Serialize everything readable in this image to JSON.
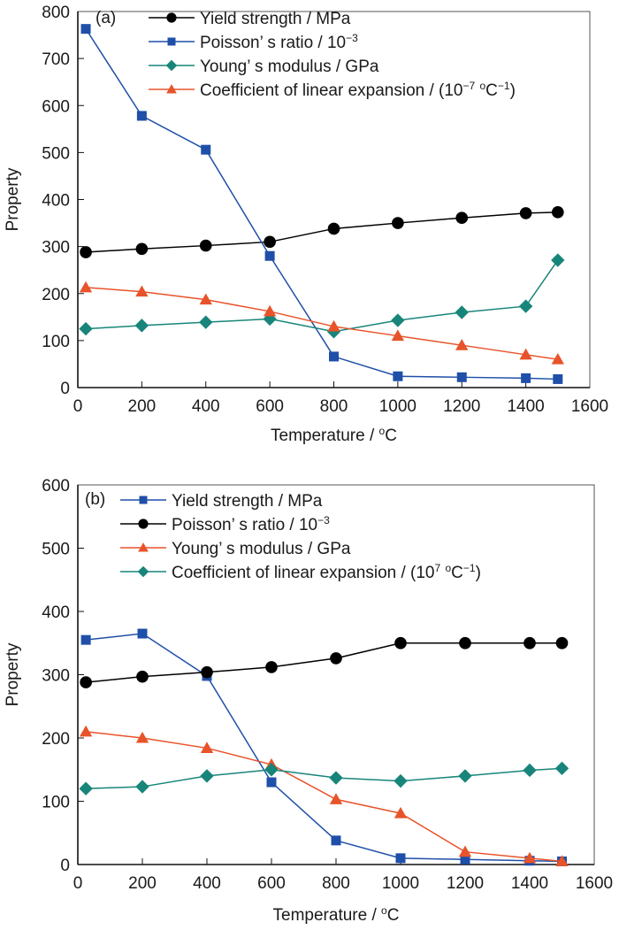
{
  "chart_data": [
    {
      "type": "line",
      "panel_label": "(a)",
      "title": "",
      "xlabel": "Temperature / °C",
      "ylabel": "Property",
      "xlim": [
        0,
        1600
      ],
      "ylim": [
        0,
        800
      ],
      "xticks": [
        0,
        200,
        400,
        600,
        800,
        1000,
        1200,
        1400,
        1600
      ],
      "yticks": [
        0,
        100,
        200,
        300,
        400,
        500,
        600,
        700,
        800
      ],
      "grid": false,
      "legend_position": "top-right",
      "x": [
        25,
        200,
        400,
        600,
        800,
        1000,
        1200,
        1400,
        1500
      ],
      "series": [
        {
          "name": "Yield strength / MPa",
          "marker": "circle",
          "color": "#000000",
          "values": [
            288,
            295,
            302,
            310,
            338,
            350,
            361,
            371,
            373
          ]
        },
        {
          "name": "Poisson’ s ratio / 10⁻³",
          "marker": "square",
          "color": "#1f4fa8",
          "values": [
            763,
            578,
            506,
            280,
            66,
            24,
            22,
            20,
            18
          ]
        },
        {
          "name": "Young’ s modulus / GPa",
          "marker": "diamond",
          "color": "#17857a",
          "values": [
            125,
            132,
            139,
            146,
            119,
            143,
            160,
            173,
            271
          ]
        },
        {
          "name": "Coefficient of linear expansion / (10⁻⁷ °C⁻¹)",
          "marker": "triangle",
          "color": "#e8532a",
          "values": [
            213,
            204,
            187,
            162,
            130,
            110,
            90,
            70,
            60
          ]
        }
      ]
    },
    {
      "type": "line",
      "panel_label": "(b)",
      "title": "",
      "xlabel": "Temperature / °C",
      "ylabel": "Property",
      "xlim": [
        0,
        1600
      ],
      "ylim": [
        0,
        600
      ],
      "xticks": [
        0,
        200,
        400,
        600,
        800,
        1000,
        1200,
        1400,
        1600
      ],
      "yticks": [
        0,
        100,
        200,
        300,
        400,
        500,
        600
      ],
      "grid": false,
      "legend_position": "top-right",
      "x": [
        25,
        200,
        400,
        600,
        800,
        1000,
        1200,
        1400,
        1500
      ],
      "series": [
        {
          "name": "Yield strength / MPa",
          "marker": "square",
          "color": "#1f4fa8",
          "values": [
            355,
            365,
            298,
            130,
            38,
            10,
            8,
            6,
            5
          ]
        },
        {
          "name": "Poisson’ s ratio / 10⁻³",
          "marker": "circle",
          "color": "#000000",
          "values": [
            288,
            297,
            304,
            312,
            326,
            350,
            350,
            350,
            350
          ]
        },
        {
          "name": "Young’ s modulus / GPa",
          "marker": "triangle",
          "color": "#e8532a",
          "values": [
            210,
            200,
            184,
            158,
            103,
            81,
            20,
            10,
            5
          ]
        },
        {
          "name": "Coefficient of linear expansion / (10⁷ °C⁻¹)",
          "marker": "diamond",
          "color": "#17857a",
          "values": [
            120,
            123,
            140,
            150,
            137,
            132,
            140,
            149,
            152
          ]
        }
      ]
    }
  ]
}
